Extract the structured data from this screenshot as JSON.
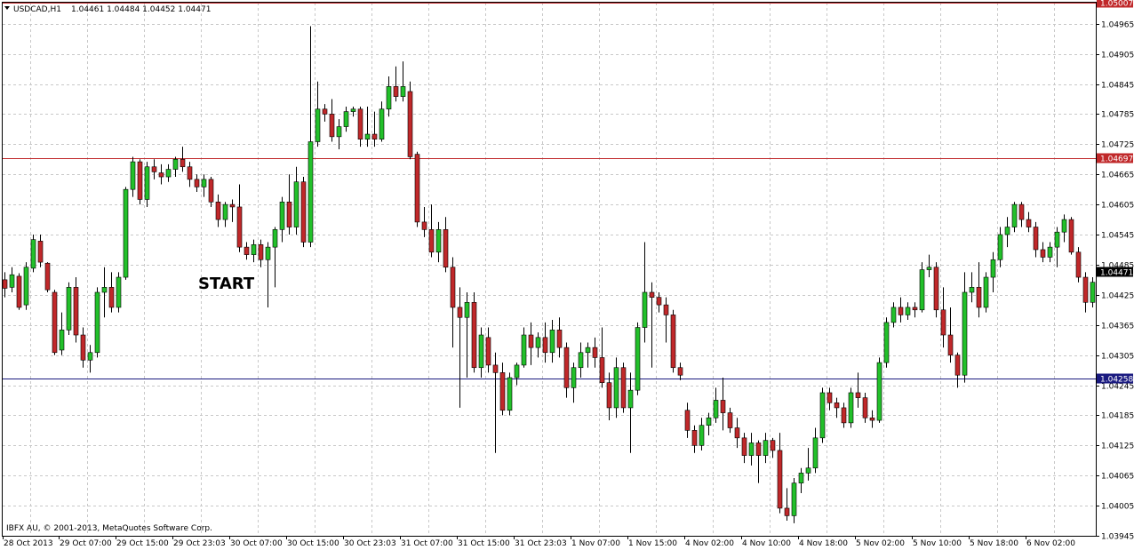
{
  "chart_info": {
    "symbol_label": "USDCAD,H1",
    "ohlc_label": "1.04461 1.04484 1.04452 1.04471",
    "copyright": "IBFX AU, © 2001-2013, MetaQuotes Software Corp.",
    "menu_icon": "triangle-down-icon"
  },
  "annotation": {
    "text": "START"
  },
  "colors": {
    "bull": "#22c02a",
    "bear": "#c0282a",
    "wick": "#000000",
    "grid": "#c8c8c8",
    "line_top": "#c0282a",
    "line_mid": "#c0282a",
    "line_bottom": "#1a1a80",
    "current_badge": "#000000"
  },
  "chart_data": {
    "type": "candlestick",
    "title": "USDCAD,H1",
    "ylim": [
      1.03945,
      1.05007
    ],
    "grid": true,
    "y_ticks": [
      "1.04965",
      "1.04905",
      "1.04845",
      "1.04785",
      "1.04725",
      "1.04665",
      "1.04605",
      "1.04545",
      "1.04485",
      "1.04425",
      "1.04365",
      "1.04305",
      "1.04245",
      "1.04185",
      "1.04125",
      "1.04065",
      "1.04005",
      "1.03945"
    ],
    "x_ticks": [
      "28 Oct 2013",
      "29 Oct 07:00",
      "29 Oct 15:00",
      "29 Oct 23:03",
      "30 Oct 07:00",
      "30 Oct 15:00",
      "30 Oct 23:03",
      "31 Oct 07:00",
      "31 Oct 15:00",
      "31 Oct 23:03",
      "1 Nov 07:00",
      "1 Nov 15:00",
      "4 Nov 02:00",
      "4 Nov 10:00",
      "4 Nov 18:00",
      "5 Nov 02:00",
      "5 Nov 10:00",
      "5 Nov 18:00",
      "6 Nov 02:00"
    ],
    "horizontal_lines": [
      {
        "name": "top-line",
        "value": 1.05007,
        "label": "1.05007"
      },
      {
        "name": "mid-line",
        "value": 1.04697,
        "label": "1.04697"
      },
      {
        "name": "bottom-line",
        "value": 1.04258,
        "label": "1.04258"
      }
    ],
    "current_price": {
      "value": 1.04471,
      "label": "1.04471"
    },
    "candles": [
      [
        1.04455,
        1.0447,
        1.0442,
        1.04438
      ],
      [
        1.0444,
        1.0448,
        1.0443,
        1.04465
      ],
      [
        1.04462,
        1.04468,
        1.04395,
        1.044
      ],
      [
        1.04405,
        1.0449,
        1.04395,
        1.0448
      ],
      [
        1.04478,
        1.04545,
        1.0447,
        1.04535
      ],
      [
        1.04532,
        1.04545,
        1.0448,
        1.0449
      ],
      [
        1.04488,
        1.0449,
        1.0443,
        1.04435
      ],
      [
        1.0443,
        1.04435,
        1.04305,
        1.0431
      ],
      [
        1.04315,
        1.0439,
        1.04305,
        1.04355
      ],
      [
        1.04355,
        1.0445,
        1.04345,
        1.0444
      ],
      [
        1.0444,
        1.0446,
        1.0433,
        1.04345
      ],
      [
        1.04345,
        1.0436,
        1.0428,
        1.04295
      ],
      [
        1.04295,
        1.04325,
        1.0427,
        1.0431
      ],
      [
        1.0431,
        1.0444,
        1.043,
        1.0443
      ],
      [
        1.0443,
        1.0448,
        1.0438,
        1.0444
      ],
      [
        1.0444,
        1.0447,
        1.0439,
        1.044
      ],
      [
        1.044,
        1.0447,
        1.0439,
        1.0446
      ],
      [
        1.0446,
        1.0464,
        1.04455,
        1.04635
      ],
      [
        1.04635,
        1.047,
        1.0462,
        1.0469
      ],
      [
        1.0469,
        1.04695,
        1.04605,
        1.04615
      ],
      [
        1.04615,
        1.0469,
        1.046,
        1.0468
      ],
      [
        1.0468,
        1.04695,
        1.04655,
        1.0467
      ],
      [
        1.04668,
        1.04685,
        1.04645,
        1.0466
      ],
      [
        1.0466,
        1.04685,
        1.0465,
        1.04675
      ],
      [
        1.04675,
        1.047,
        1.0466,
        1.04695
      ],
      [
        1.04695,
        1.0472,
        1.0467,
        1.0468
      ],
      [
        1.0468,
        1.0469,
        1.0464,
        1.04655
      ],
      [
        1.04655,
        1.04665,
        1.0463,
        1.0464
      ],
      [
        1.0464,
        1.04665,
        1.0462,
        1.04655
      ],
      [
        1.04655,
        1.0466,
        1.046,
        1.0461
      ],
      [
        1.0461,
        1.04625,
        1.0456,
        1.04575
      ],
      [
        1.04575,
        1.0461,
        1.0456,
        1.04605
      ],
      [
        1.04605,
        1.04615,
        1.0457,
        1.046
      ],
      [
        1.046,
        1.04645,
        1.0451,
        1.0452
      ],
      [
        1.0452,
        1.0453,
        1.04495,
        1.04505
      ],
      [
        1.04505,
        1.04535,
        1.0449,
        1.04525
      ],
      [
        1.04525,
        1.04535,
        1.0448,
        1.04495
      ],
      [
        1.04495,
        1.0453,
        1.044,
        1.0452
      ],
      [
        1.0452,
        1.0456,
        1.0444,
        1.04555
      ],
      [
        1.04555,
        1.0462,
        1.0453,
        1.0461
      ],
      [
        1.0461,
        1.04665,
        1.04545,
        1.0456
      ],
      [
        1.0456,
        1.0468,
        1.04545,
        1.0465
      ],
      [
        1.0465,
        1.0466,
        1.0452,
        1.0453
      ],
      [
        1.0453,
        1.0496,
        1.0452,
        1.0473
      ],
      [
        1.0473,
        1.0485,
        1.0472,
        1.04795
      ],
      [
        1.04795,
        1.04805,
        1.0477,
        1.04785
      ],
      [
        1.04785,
        1.04815,
        1.0473,
        1.0474
      ],
      [
        1.0474,
        1.04775,
        1.04715,
        1.0476
      ],
      [
        1.0476,
        1.048,
        1.0475,
        1.0479
      ],
      [
        1.0479,
        1.048,
        1.0478,
        1.04795
      ],
      [
        1.04795,
        1.048,
        1.0472,
        1.04735
      ],
      [
        1.04735,
        1.048,
        1.0472,
        1.04745
      ],
      [
        1.04745,
        1.0479,
        1.0472,
        1.04735
      ],
      [
        1.04735,
        1.0481,
        1.0473,
        1.04795
      ],
      [
        1.04795,
        1.0486,
        1.0478,
        1.0484
      ],
      [
        1.0484,
        1.0488,
        1.0481,
        1.0482
      ],
      [
        1.0482,
        1.0489,
        1.0481,
        1.0484
      ],
      [
        1.0483,
        1.0485,
        1.04695,
        1.047
      ],
      [
        1.04705,
        1.0471,
        1.0456,
        1.0457
      ],
      [
        1.0457,
        1.046,
        1.0454,
        1.04555
      ],
      [
        1.04555,
        1.04605,
        1.045,
        1.0451
      ],
      [
        1.0451,
        1.0457,
        1.0449,
        1.04555
      ],
      [
        1.04555,
        1.0458,
        1.0447,
        1.0448
      ],
      [
        1.0448,
        1.045,
        1.0432,
        1.044
      ],
      [
        1.044,
        1.0444,
        1.042,
        1.0438
      ],
      [
        1.0438,
        1.0443,
        1.0426,
        1.0441
      ],
      [
        1.0441,
        1.0443,
        1.0427,
        1.0428
      ],
      [
        1.0428,
        1.0436,
        1.0426,
        1.04345
      ],
      [
        1.0434,
        1.0436,
        1.0427,
        1.04285
      ],
      [
        1.04285,
        1.0431,
        1.0411,
        1.0427
      ],
      [
        1.0427,
        1.0429,
        1.04185,
        1.04195
      ],
      [
        1.04195,
        1.0427,
        1.04185,
        1.0426
      ],
      [
        1.0426,
        1.0429,
        1.04245,
        1.04285
      ],
      [
        1.04285,
        1.0436,
        1.0428,
        1.04345
      ],
      [
        1.04345,
        1.0437,
        1.04285,
        1.0432
      ],
      [
        1.0432,
        1.0435,
        1.043,
        1.0434
      ],
      [
        1.0434,
        1.0437,
        1.0429,
        1.0431
      ],
      [
        1.0431,
        1.04375,
        1.0429,
        1.04355
      ],
      [
        1.04355,
        1.0438,
        1.043,
        1.0432
      ],
      [
        1.0432,
        1.0433,
        1.0422,
        1.0424
      ],
      [
        1.0424,
        1.0429,
        1.0421,
        1.0428
      ],
      [
        1.0428,
        1.0433,
        1.0426,
        1.0431
      ],
      [
        1.0431,
        1.0433,
        1.0428,
        1.0432
      ],
      [
        1.0432,
        1.0434,
        1.0428,
        1.043
      ],
      [
        1.043,
        1.0436,
        1.0424,
        1.0425
      ],
      [
        1.0425,
        1.0427,
        1.04175,
        1.042
      ],
      [
        1.042,
        1.043,
        1.0418,
        1.0428
      ],
      [
        1.0428,
        1.0429,
        1.0419,
        1.042
      ],
      [
        1.042,
        1.0427,
        1.0411,
        1.04235
      ],
      [
        1.04235,
        1.0437,
        1.04225,
        1.0436
      ],
      [
        1.0436,
        1.0453,
        1.0433,
        1.0443
      ],
      [
        1.0443,
        1.0445,
        1.0428,
        1.0442
      ],
      [
        1.0442,
        1.0443,
        1.0439,
        1.04405
      ],
      [
        1.04405,
        1.0442,
        1.0433,
        1.04385
      ],
      [
        1.04385,
        1.04395,
        1.0427,
        1.0428
      ],
      [
        1.0428,
        1.0429,
        1.04255,
        1.04265
      ],
      [
        1.04195,
        1.0421,
        1.0414,
        1.04155
      ],
      [
        1.04155,
        1.04165,
        1.0411,
        1.04125
      ],
      [
        1.04125,
        1.0418,
        1.04115,
        1.04165
      ],
      [
        1.04165,
        1.0419,
        1.04145,
        1.0418
      ],
      [
        1.0418,
        1.0424,
        1.0417,
        1.04215
      ],
      [
        1.04215,
        1.0426,
        1.04155,
        1.0419
      ],
      [
        1.0419,
        1.042,
        1.0415,
        1.0416
      ],
      [
        1.0416,
        1.0418,
        1.0412,
        1.0414
      ],
      [
        1.0414,
        1.0415,
        1.0409,
        1.04105
      ],
      [
        1.04105,
        1.0415,
        1.04085,
        1.0413
      ],
      [
        1.0413,
        1.04135,
        1.0405,
        1.04105
      ],
      [
        1.04105,
        1.0415,
        1.0409,
        1.04135
      ],
      [
        1.04135,
        1.0414,
        1.041,
        1.04115
      ],
      [
        1.04115,
        1.0415,
        1.0399,
        1.04
      ],
      [
        1.04,
        1.0404,
        1.03975,
        1.03985
      ],
      [
        1.03985,
        1.0406,
        1.0397,
        1.0405
      ],
      [
        1.0405,
        1.0408,
        1.0403,
        1.0407
      ],
      [
        1.0407,
        1.0412,
        1.04055,
        1.0408
      ],
      [
        1.0408,
        1.0416,
        1.0407,
        1.0414
      ],
      [
        1.0414,
        1.0424,
        1.0413,
        1.0423
      ],
      [
        1.0423,
        1.0424,
        1.04195,
        1.0421
      ],
      [
        1.0421,
        1.0422,
        1.0418,
        1.042
      ],
      [
        1.042,
        1.0421,
        1.0416,
        1.0417
      ],
      [
        1.0417,
        1.0424,
        1.0416,
        1.0423
      ],
      [
        1.0423,
        1.0427,
        1.042,
        1.0422
      ],
      [
        1.0422,
        1.0423,
        1.0417,
        1.0418
      ],
      [
        1.0418,
        1.04195,
        1.0416,
        1.04175
      ],
      [
        1.04175,
        1.043,
        1.0417,
        1.0429
      ],
      [
        1.0429,
        1.0438,
        1.0428,
        1.0437
      ],
      [
        1.0437,
        1.0441,
        1.0436,
        1.044
      ],
      [
        1.044,
        1.0442,
        1.0437,
        1.04385
      ],
      [
        1.04385,
        1.0441,
        1.04375,
        1.044
      ],
      [
        1.044,
        1.0441,
        1.0438,
        1.04395
      ],
      [
        1.04395,
        1.0449,
        1.0439,
        1.04475
      ],
      [
        1.04475,
        1.04505,
        1.0446,
        1.0448
      ],
      [
        1.0448,
        1.0449,
        1.0438,
        1.04395
      ],
      [
        1.04395,
        1.0444,
        1.0432,
        1.04345
      ],
      [
        1.04345,
        1.044,
        1.0429,
        1.04305
      ],
      [
        1.04305,
        1.0431,
        1.0424,
        1.04265
      ],
      [
        1.04265,
        1.0447,
        1.0425,
        1.0443
      ],
      [
        1.0443,
        1.0447,
        1.0441,
        1.0444
      ],
      [
        1.0444,
        1.0449,
        1.0438,
        1.044
      ],
      [
        1.044,
        1.0447,
        1.0439,
        1.0446
      ],
      [
        1.0446,
        1.0451,
        1.0443,
        1.04495
      ],
      [
        1.04495,
        1.0456,
        1.0448,
        1.04545
      ],
      [
        1.04545,
        1.0458,
        1.0452,
        1.0456
      ],
      [
        1.0456,
        1.0461,
        1.0455,
        1.04605
      ],
      [
        1.04605,
        1.0461,
        1.0456,
        1.04575
      ],
      [
        1.04575,
        1.0459,
        1.0455,
        1.0456
      ],
      [
        1.0456,
        1.0457,
        1.045,
        1.04515
      ],
      [
        1.04515,
        1.0453,
        1.0449,
        1.045
      ],
      [
        1.045,
        1.0453,
        1.0449,
        1.0452
      ],
      [
        1.0452,
        1.0456,
        1.0448,
        1.0455
      ],
      [
        1.0455,
        1.04585,
        1.0453,
        1.04575
      ],
      [
        1.04575,
        1.0458,
        1.04505,
        1.0451
      ],
      [
        1.0451,
        1.0452,
        1.0445,
        1.0446
      ],
      [
        1.0446,
        1.0447,
        1.0439,
        1.0441
      ],
      [
        1.0441,
        1.0446,
        1.044,
        1.0445
      ],
      [
        1.0445,
        1.0447,
        1.0442,
        1.0444
      ],
      [
        1.0444,
        1.0449,
        1.0443,
        1.0448
      ],
      [
        1.0448,
        1.0454,
        1.0446,
        1.0447
      ],
      [
        1.04461,
        1.04484,
        1.04452,
        1.04471
      ]
    ]
  }
}
